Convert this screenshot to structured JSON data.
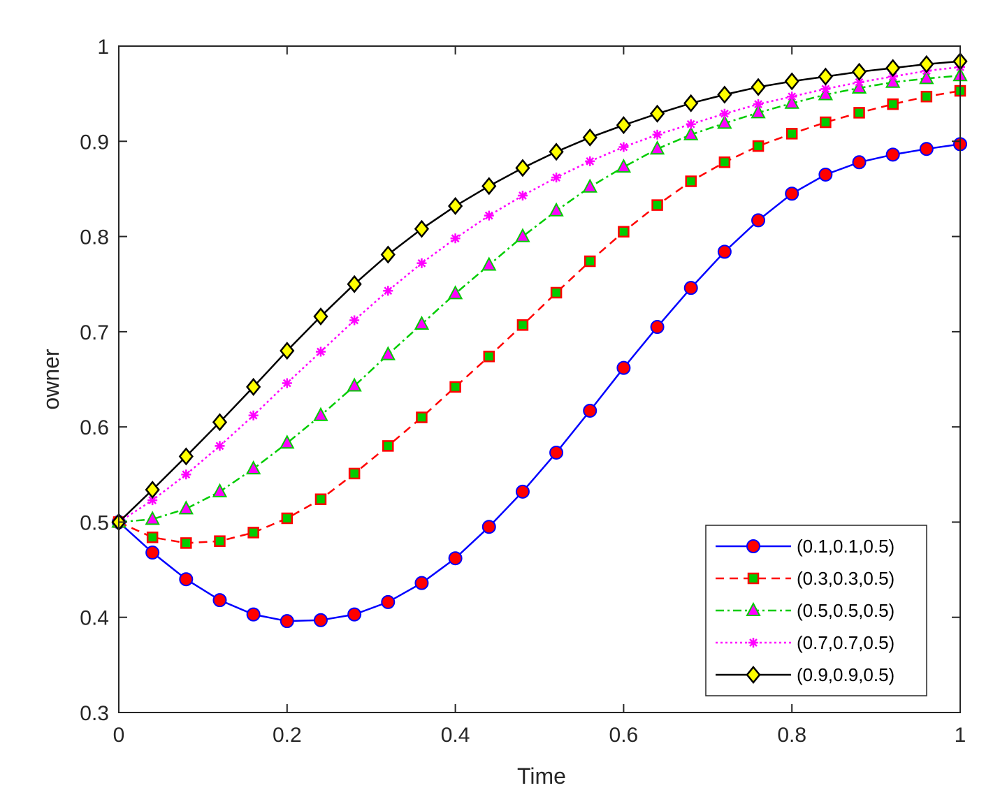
{
  "chart_data": {
    "type": "line",
    "title": "",
    "xlabel": "Time",
    "ylabel": "owner",
    "xlim": [
      0,
      1
    ],
    "ylim": [
      0.3,
      1
    ],
    "xticks": [
      0,
      0.2,
      0.4,
      0.6,
      0.8,
      1
    ],
    "xtick_labels": [
      "0",
      "0.2",
      "0.4",
      "0.6",
      "0.8",
      "1"
    ],
    "yticks": [
      0.3,
      0.4,
      0.5,
      0.6,
      0.7,
      0.8,
      0.9,
      1
    ],
    "ytick_labels": [
      "0.3",
      "0.4",
      "0.5",
      "0.6",
      "0.7",
      "0.8",
      "0.9",
      "1"
    ],
    "grid": false,
    "legend_position": "bottom-right",
    "series": [
      {
        "name": "(0.1,0.1,0.5)",
        "color": "#0000ff",
        "marker": "circle",
        "marker_fill": "#ff0000",
        "dash": "solid",
        "x": [
          0,
          0.04,
          0.08,
          0.12,
          0.16,
          0.2,
          0.24,
          0.28,
          0.32,
          0.36,
          0.4,
          0.44,
          0.48,
          0.52,
          0.56,
          0.6,
          0.64,
          0.68,
          0.72,
          0.76,
          0.8,
          0.84,
          0.88,
          0.92,
          0.96,
          1
        ],
        "values": [
          0.5,
          0.468,
          0.44,
          0.418,
          0.403,
          0.396,
          0.397,
          0.403,
          0.416,
          0.436,
          0.462,
          0.495,
          0.532,
          0.573,
          0.617,
          0.662,
          0.705,
          0.746,
          0.784,
          0.817,
          0.845,
          0.865,
          0.878,
          0.886,
          0.892,
          0.897
        ]
      },
      {
        "name": "(0.3,0.3,0.5)",
        "color": "#ff0000",
        "marker": "square",
        "marker_fill": "#00cc00",
        "dash": "dashed",
        "x": [
          0,
          0.04,
          0.08,
          0.12,
          0.16,
          0.2,
          0.24,
          0.28,
          0.32,
          0.36,
          0.4,
          0.44,
          0.48,
          0.52,
          0.56,
          0.6,
          0.64,
          0.68,
          0.72,
          0.76,
          0.8,
          0.84,
          0.88,
          0.92,
          0.96,
          1
        ],
        "values": [
          0.5,
          0.484,
          0.478,
          0.48,
          0.489,
          0.504,
          0.524,
          0.551,
          0.58,
          0.61,
          0.642,
          0.674,
          0.707,
          0.741,
          0.774,
          0.805,
          0.833,
          0.858,
          0.878,
          0.895,
          0.908,
          0.92,
          0.93,
          0.939,
          0.947,
          0.953
        ]
      },
      {
        "name": "(0.5,0.5,0.5)",
        "color": "#00cc00",
        "marker": "triangle",
        "marker_fill": "#ff00ff",
        "dash": "dashdot",
        "x": [
          0,
          0.04,
          0.08,
          0.12,
          0.16,
          0.2,
          0.24,
          0.28,
          0.32,
          0.36,
          0.4,
          0.44,
          0.48,
          0.52,
          0.56,
          0.6,
          0.64,
          0.68,
          0.72,
          0.76,
          0.8,
          0.84,
          0.88,
          0.92,
          0.96,
          1
        ],
        "values": [
          0.5,
          0.503,
          0.514,
          0.532,
          0.556,
          0.583,
          0.612,
          0.643,
          0.676,
          0.708,
          0.74,
          0.77,
          0.8,
          0.827,
          0.852,
          0.873,
          0.892,
          0.907,
          0.919,
          0.93,
          0.94,
          0.949,
          0.956,
          0.962,
          0.966,
          0.969
        ]
      },
      {
        "name": "(0.7,0.7,0.5)",
        "color": "#ff00ff",
        "marker": "asterisk",
        "marker_fill": "#ff00ff",
        "dash": "dotted",
        "x": [
          0,
          0.04,
          0.08,
          0.12,
          0.16,
          0.2,
          0.24,
          0.28,
          0.32,
          0.36,
          0.4,
          0.44,
          0.48,
          0.52,
          0.56,
          0.6,
          0.64,
          0.68,
          0.72,
          0.76,
          0.8,
          0.84,
          0.88,
          0.92,
          0.96,
          1
        ],
        "values": [
          0.5,
          0.523,
          0.55,
          0.58,
          0.612,
          0.646,
          0.679,
          0.712,
          0.743,
          0.772,
          0.798,
          0.822,
          0.843,
          0.862,
          0.879,
          0.894,
          0.907,
          0.918,
          0.929,
          0.939,
          0.947,
          0.955,
          0.962,
          0.968,
          0.974,
          0.978
        ]
      },
      {
        "name": "(0.9,0.9,0.5)",
        "color": "#000000",
        "marker": "diamond",
        "marker_fill": "#ffff00",
        "dash": "solid",
        "x": [
          0,
          0.04,
          0.08,
          0.12,
          0.16,
          0.2,
          0.24,
          0.28,
          0.32,
          0.36,
          0.4,
          0.44,
          0.48,
          0.52,
          0.56,
          0.6,
          0.64,
          0.68,
          0.72,
          0.76,
          0.8,
          0.84,
          0.88,
          0.92,
          0.96,
          1
        ],
        "values": [
          0.5,
          0.534,
          0.569,
          0.605,
          0.642,
          0.68,
          0.716,
          0.75,
          0.781,
          0.808,
          0.832,
          0.853,
          0.872,
          0.889,
          0.904,
          0.917,
          0.929,
          0.94,
          0.949,
          0.957,
          0.963,
          0.968,
          0.973,
          0.977,
          0.981,
          0.984
        ]
      }
    ]
  }
}
